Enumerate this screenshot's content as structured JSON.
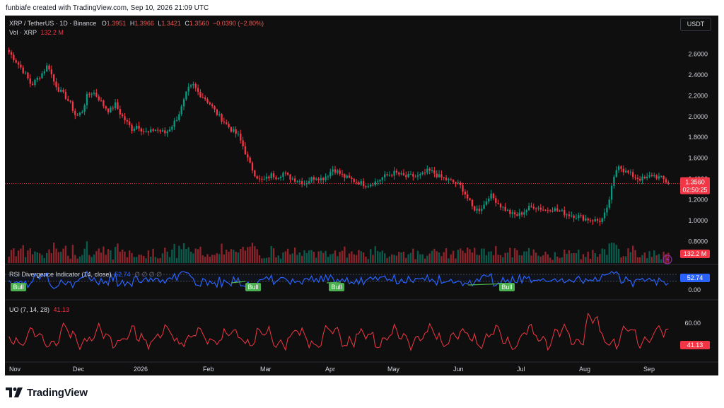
{
  "caption": "funbiafe created with TradingView.com, Sep 10, 2026 21:09 UTC",
  "brand": "TradingView",
  "currency_button": "USDT",
  "main_legend": {
    "symbol": "XRP / TetherUS · 1D · Binance",
    "o_label": "O",
    "o_value": "1.3951",
    "h_label": "H",
    "h_value": "1.3966",
    "l_label": "L",
    "l_value": "1.3421",
    "c_label": "C",
    "c_value": "1.3560",
    "change": "−0.0390 (−2.80%)"
  },
  "vol_legend": {
    "label": "Vol · XRP",
    "value": "132.2 M"
  },
  "rsi_legend": {
    "label": "RSI Divergence Indicator (14, close)",
    "value": "52.74",
    "na": "∅ ∅ ∅ ∅"
  },
  "uo_legend": {
    "label": "UO (7, 14, 28)",
    "value": "41.13"
  },
  "colors": {
    "up": "#089981",
    "down": "#f23645",
    "rsi": "#2962ff",
    "uo": "#f23645",
    "bull": "#4caf50"
  },
  "chart_data": {
    "type": "candlestick",
    "symbol": "XRP / TetherUS",
    "interval": "1D",
    "price_axis": [
      "2.6000",
      "2.4000",
      "2.2000",
      "2.0000",
      "1.8000",
      "1.6000",
      "1.4000",
      "1.2000",
      "1.0000",
      "0.8000"
    ],
    "price_range": [
      0.66,
      2.78
    ],
    "x_labels": [
      "Nov",
      "Dec",
      "2026",
      "Feb",
      "Mar",
      "Apr",
      "May",
      "Jun",
      "Jul",
      "Aug",
      "Sep"
    ],
    "last_price": "1.3560",
    "countdown": "02:50:25",
    "close_series": [
      2.62,
      2.55,
      2.48,
      2.4,
      2.3,
      2.36,
      2.42,
      2.5,
      2.34,
      2.25,
      2.2,
      2.12,
      2.0,
      2.04,
      2.2,
      2.24,
      2.18,
      2.1,
      2.05,
      2.12,
      2.02,
      1.95,
      1.88,
      1.92,
      1.86,
      1.84,
      1.88,
      1.86,
      1.84,
      1.9,
      1.98,
      2.1,
      2.26,
      2.3,
      2.22,
      2.18,
      2.12,
      2.04,
      1.98,
      1.92,
      1.86,
      1.82,
      1.7,
      1.55,
      1.45,
      1.38,
      1.4,
      1.44,
      1.42,
      1.46,
      1.42,
      1.4,
      1.38,
      1.36,
      1.4,
      1.42,
      1.4,
      1.44,
      1.5,
      1.46,
      1.42,
      1.4,
      1.38,
      1.36,
      1.34,
      1.36,
      1.38,
      1.42,
      1.44,
      1.46,
      1.44,
      1.42,
      1.43,
      1.42,
      1.44,
      1.48,
      1.46,
      1.42,
      1.4,
      1.38,
      1.36,
      1.32,
      1.22,
      1.12,
      1.1,
      1.15,
      1.25,
      1.2,
      1.14,
      1.1,
      1.06,
      1.05,
      1.08,
      1.12,
      1.14,
      1.12,
      1.1,
      1.12,
      1.1,
      1.08,
      1.06,
      1.05,
      1.04,
      1.02,
      1.01,
      1.0,
      1.0,
      1.1,
      1.35,
      1.55,
      1.48,
      1.45,
      1.42,
      1.4,
      1.4,
      1.44,
      1.42,
      1.4,
      1.356
    ],
    "series": [
      {
        "name": "Vol · XRP",
        "last": "132.2 M"
      },
      {
        "name": "RSI Divergence Indicator (14, close)",
        "last": "52.74",
        "axis": [
          "0.00"
        ],
        "signals": [
          "Bull",
          "Bull",
          "Bull",
          "Bull"
        ]
      },
      {
        "name": "UO (7, 14, 28)",
        "last": "41.13",
        "axis": [
          "60.00"
        ]
      }
    ]
  }
}
